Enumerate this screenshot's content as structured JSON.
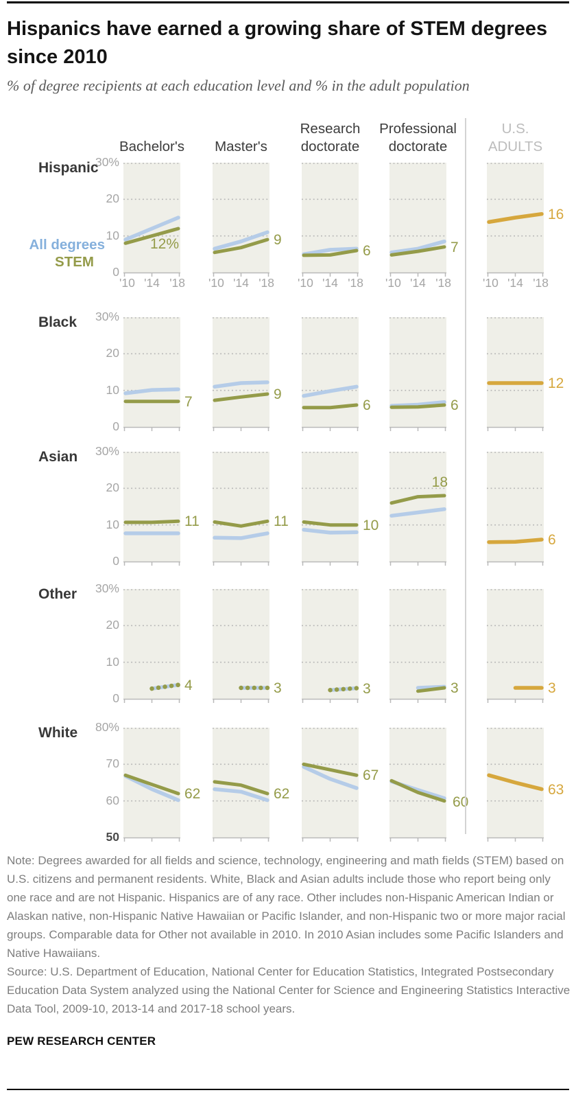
{
  "header": {
    "title": "Hispanics have earned a growing share of STEM degrees since 2010",
    "subtitle": "% of degree recipients at each education level and % in the adult population"
  },
  "legend": [
    {
      "id": "all_degrees",
      "label": "All degrees"
    },
    {
      "id": "stem",
      "label": "STEM"
    }
  ],
  "colors": {
    "all_degrees_line": "#b5cce8",
    "all_degrees_text": "#85b0dc",
    "stem": "#949b49",
    "adults": "#d6a73d",
    "plot_bg": "#efefe8",
    "grid": "#b4b4b4",
    "axis": "#b9b9b9",
    "tick_label": "#a5a5a5",
    "separator": "#d3d3d3"
  },
  "chart_data": {
    "type": "line",
    "x": [
      2010,
      2014,
      2018
    ],
    "x_tick_labels": [
      "'10",
      "'14",
      "'18"
    ],
    "columns": [
      {
        "id": "bachelors",
        "label_lines": [
          "Bachelor's"
        ],
        "muted": false
      },
      {
        "id": "masters",
        "label_lines": [
          "Master's"
        ],
        "muted": false
      },
      {
        "id": "research_doctorate",
        "label_lines": [
          "Research",
          "doctorate"
        ],
        "muted": false
      },
      {
        "id": "professional_doctorate",
        "label_lines": [
          "Professional",
          "doctorate"
        ],
        "muted": false
      },
      {
        "id": "us_adults",
        "label_lines": [
          "U.S.",
          "ADULTS"
        ],
        "muted": true
      }
    ],
    "rows": [
      {
        "label": "Hispanic",
        "ymin": 0,
        "ymax": 30,
        "show_x_labels": true,
        "show_legend": true,
        "yticks": [
          {
            "label": "30%",
            "value": 30
          },
          {
            "label": "20",
            "value": 20
          },
          {
            "label": "10",
            "value": 10
          },
          {
            "label": "0",
            "value": 0
          }
        ],
        "cells": [
          {
            "series": [
              {
                "id": "all_degrees",
                "values": [
                  9,
                  12,
                  15
                ]
              },
              {
                "id": "stem",
                "values": [
                  8,
                  10,
                  12
                ]
              }
            ],
            "label": "12%",
            "label_pos": "below"
          },
          {
            "series": [
              {
                "id": "all_degrees",
                "values": [
                  6.5,
                  8.5,
                  11
                ]
              },
              {
                "id": "stem",
                "values": [
                  5.5,
                  6.8,
                  9
                ]
              }
            ],
            "label": "9"
          },
          {
            "series": [
              {
                "id": "all_degrees",
                "values": [
                  5,
                  6.2,
                  6.5
                ]
              },
              {
                "id": "stem",
                "values": [
                  4.7,
                  4.8,
                  6
                ]
              }
            ],
            "label": "6"
          },
          {
            "series": [
              {
                "id": "all_degrees",
                "values": [
                  5.5,
                  6.5,
                  8.5
                ]
              },
              {
                "id": "stem",
                "values": [
                  4.8,
                  5.8,
                  7
                ]
              }
            ],
            "label": "7"
          },
          {
            "series": [
              {
                "id": "adults",
                "values": [
                  13.8,
                  15,
                  16
                ]
              }
            ],
            "label": "16"
          }
        ]
      },
      {
        "label": "Black",
        "ymin": 0,
        "ymax": 30,
        "show_x_labels": false,
        "show_legend": false,
        "yticks": [
          {
            "label": "30%",
            "value": 30
          },
          {
            "label": "20",
            "value": 20
          },
          {
            "label": "10",
            "value": 10
          },
          {
            "label": "0",
            "value": 0
          }
        ],
        "cells": [
          {
            "series": [
              {
                "id": "all_degrees",
                "values": [
                  9.2,
                  10.1,
                  10.3
                ]
              },
              {
                "id": "stem",
                "values": [
                  7,
                  7,
                  7
                ]
              }
            ],
            "label": "7"
          },
          {
            "series": [
              {
                "id": "all_degrees",
                "values": [
                  11,
                  12,
                  12.2
                ]
              },
              {
                "id": "stem",
                "values": [
                  7.3,
                  8.2,
                  9
                ]
              }
            ],
            "label": "9"
          },
          {
            "series": [
              {
                "id": "all_degrees",
                "values": [
                  8.5,
                  9.8,
                  11
                ]
              },
              {
                "id": "stem",
                "values": [
                  5.3,
                  5.3,
                  6
                ]
              }
            ],
            "label": "6"
          },
          {
            "series": [
              {
                "id": "all_degrees",
                "values": [
                  5.8,
                  6.1,
                  6.8
                ]
              },
              {
                "id": "stem",
                "values": [
                  5.4,
                  5.5,
                  6
                ]
              }
            ],
            "label": "6"
          },
          {
            "series": [
              {
                "id": "adults",
                "values": [
                  12,
                  12,
                  12
                ]
              }
            ],
            "label": "12"
          }
        ]
      },
      {
        "label": "Asian",
        "ymin": 0,
        "ymax": 30,
        "show_x_labels": false,
        "show_legend": false,
        "yticks": [
          {
            "label": "30%",
            "value": 30
          },
          {
            "label": "20",
            "value": 20
          },
          {
            "label": "10",
            "value": 10
          },
          {
            "label": "0",
            "value": 0
          }
        ],
        "cells": [
          {
            "series": [
              {
                "id": "all_degrees",
                "values": [
                  7.7,
                  7.7,
                  7.7
                ]
              },
              {
                "id": "stem",
                "values": [
                  10.7,
                  10.7,
                  11
                ]
              }
            ],
            "label": "11"
          },
          {
            "series": [
              {
                "id": "all_degrees",
                "values": [
                  6.5,
                  6.4,
                  7.7
                ]
              },
              {
                "id": "stem",
                "values": [
                  10.8,
                  9.7,
                  11
                ]
              }
            ],
            "label": "11"
          },
          {
            "series": [
              {
                "id": "all_degrees",
                "values": [
                  8.7,
                  7.9,
                  8
                ]
              },
              {
                "id": "stem",
                "values": [
                  10.8,
                  10,
                  10
                ]
              }
            ],
            "label": "10"
          },
          {
            "series": [
              {
                "id": "all_degrees",
                "values": [
                  12.5,
                  13.4,
                  14.3
                ]
              },
              {
                "id": "stem",
                "values": [
                  16,
                  17.7,
                  18
                ]
              }
            ],
            "label": "18",
            "label_pos": "above"
          },
          {
            "series": [
              {
                "id": "adults",
                "values": [
                  5.3,
                  5.4,
                  6
                ]
              }
            ],
            "label": "6"
          }
        ]
      },
      {
        "label": "Other",
        "ymin": 0,
        "ymax": 30,
        "show_x_labels": false,
        "show_legend": false,
        "yticks": [
          {
            "label": "30%",
            "value": 30
          },
          {
            "label": "20",
            "value": 20
          },
          {
            "label": "10",
            "value": 10
          },
          {
            "label": "0",
            "value": 0
          }
        ],
        "cells": [
          {
            "series": [
              {
                "id": "all_degrees",
                "values": [
                  2.8,
                  3.8
                ]
              },
              {
                "id": "stem",
                "values": [
                  2.8,
                  3.8
                ],
                "dotted": true
              }
            ],
            "label": "4"
          },
          {
            "series": [
              {
                "id": "all_degrees",
                "values": [
                  3,
                  3
                ]
              },
              {
                "id": "stem",
                "values": [
                  3,
                  3
                ],
                "dotted": true
              }
            ],
            "label": "3"
          },
          {
            "series": [
              {
                "id": "all_degrees",
                "values": [
                  2.4,
                  2.9
                ]
              },
              {
                "id": "stem",
                "values": [
                  2.4,
                  2.9
                ],
                "dotted": true
              }
            ],
            "label": "3"
          },
          {
            "series": [
              {
                "id": "all_degrees",
                "values": [
                  3,
                  3.3
                ]
              },
              {
                "id": "stem",
                "values": [
                  2.1,
                  3
                ]
              }
            ],
            "label": "3"
          },
          {
            "series": [
              {
                "id": "adults",
                "values": [
                  3,
                  3
                ]
              }
            ],
            "label": "3"
          }
        ]
      },
      {
        "label": "White",
        "ymin": 50,
        "ymax": 80,
        "show_x_labels": false,
        "show_legend": false,
        "yticks": [
          {
            "label": "80%",
            "value": 80
          },
          {
            "label": "70",
            "value": 70
          },
          {
            "label": "60",
            "value": 60
          },
          {
            "label": "50",
            "value": 50,
            "bold": true
          }
        ],
        "cells": [
          {
            "series": [
              {
                "id": "all_degrees",
                "values": [
                  66.8,
                  63.2,
                  60.2
                ]
              },
              {
                "id": "stem",
                "values": [
                  67,
                  64.5,
                  62
                ]
              }
            ],
            "label": "62"
          },
          {
            "series": [
              {
                "id": "all_degrees",
                "values": [
                  63.2,
                  62.5,
                  60.2
                ]
              },
              {
                "id": "stem",
                "values": [
                  65.2,
                  64.3,
                  62
                ]
              }
            ],
            "label": "62"
          },
          {
            "series": [
              {
                "id": "all_degrees",
                "values": [
                  69.3,
                  66,
                  63.5
                ]
              },
              {
                "id": "stem",
                "values": [
                  70,
                  68.5,
                  67
                ]
              }
            ],
            "label": "67"
          },
          {
            "series": [
              {
                "id": "all_degrees",
                "values": [
                  65.3,
                  63,
                  60.7
                ]
              },
              {
                "id": "stem",
                "values": [
                  65.5,
                  62.3,
                  60
                ]
              }
            ],
            "label": "60",
            "halo": true
          },
          {
            "series": [
              {
                "id": "adults",
                "values": [
                  67,
                  65,
                  63.2
                ]
              }
            ],
            "label": "63"
          }
        ]
      }
    ]
  },
  "footer": {
    "note": "Note: Degrees awarded for all fields and science, technology, engineering and math fields (STEM) based on U.S. citizens and permanent residents. White, Black and Asian adults include those who report being only one race and are not Hispanic. Hispanics are of any race. Other includes non-Hispanic American Indian or Alaskan native, non-Hispanic Native Hawaiian or Pacific Islander, and non-Hispanic two or more major racial groups. Comparable data for Other not available in 2010. In 2010 Asian includes some Pacific Islanders and Native Hawaiians.",
    "source": "Source: U.S. Department of Education, National Center for Education Statistics, Integrated Postsecondary Education Data System analyzed using the National Center for Science and Engineering Statistics Interactive Data Tool, 2009-10, 2013-14 and 2017-18 school years.",
    "brand": "PEW RESEARCH CENTER"
  }
}
